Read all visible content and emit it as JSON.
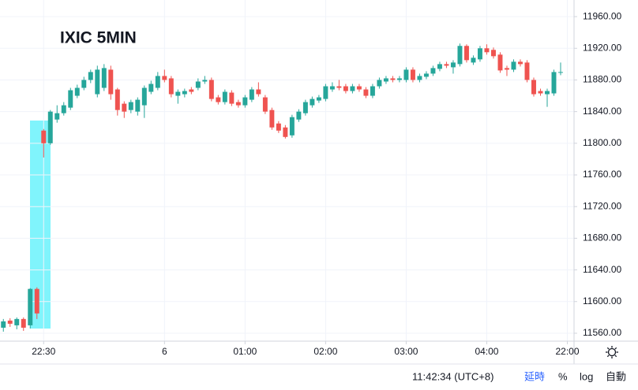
{
  "chart_data": {
    "type": "candlestick",
    "title": "IXIC 5MIN",
    "xlim": [
      -0.5,
      85
    ],
    "xticks": [
      {
        "value": 6,
        "label": "22:30"
      },
      {
        "value": 24,
        "label": "6"
      },
      {
        "value": 36,
        "label": "01:00"
      },
      {
        "value": 48,
        "label": "02:00"
      },
      {
        "value": 60,
        "label": "03:00"
      },
      {
        "value": 72,
        "label": "04:00"
      },
      {
        "value": 84,
        "label": "22:00"
      }
    ],
    "ylim": [
      11550,
      11981
    ],
    "yticks": [
      {
        "value": 11560,
        "label": "11560.00"
      },
      {
        "value": 11600,
        "label": "11600.00"
      },
      {
        "value": 11640,
        "label": "11640.00"
      },
      {
        "value": 11680,
        "label": "11680.00"
      },
      {
        "value": 11720,
        "label": "11720.00"
      },
      {
        "value": 11760,
        "label": "11760.00"
      },
      {
        "value": 11800,
        "label": "11800.00"
      },
      {
        "value": 11840,
        "label": "11840.00"
      },
      {
        "value": 11880,
        "label": "11880.00"
      },
      {
        "value": 11920,
        "label": "11920.00"
      },
      {
        "value": 11960,
        "label": "11960.00"
      }
    ],
    "grid": true,
    "up_color": "#26a69a",
    "down_color": "#ef5350",
    "open": [
      11567,
      11576,
      11570,
      11578,
      11570,
      11616,
      11816,
      11800,
      11830,
      11838,
      11845,
      11860,
      11870,
      11880,
      11862,
      11870,
      11893,
      11868,
      11850,
      11842,
      11840,
      11848,
      11865,
      11870,
      11885,
      11882,
      11860,
      11862,
      11868,
      11870,
      11878,
      11880,
      11858,
      11852,
      11864,
      11852,
      11848,
      11855,
      11868,
      11858,
      11842,
      11825,
      11820,
      11810,
      11830,
      11838,
      11848,
      11854,
      11856,
      11868,
      11872,
      11872,
      11866,
      11872,
      11868,
      11860,
      11872,
      11878,
      11882,
      11880,
      11880,
      11893,
      11880,
      11884,
      11888,
      11894,
      11900,
      11896,
      11900,
      11923,
      11902,
      11906,
      11920,
      11918,
      11912,
      11895,
      11893,
      11903,
      11902,
      11880,
      11866,
      11862,
      11863,
      11889
    ],
    "high": [
      11578,
      11579,
      11580,
      11580,
      11617,
      11618,
      11818,
      11842,
      11848,
      11852,
      11870,
      11874,
      11884,
      11893,
      11898,
      11900,
      11898,
      11870,
      11853,
      11855,
      11858,
      11873,
      11879,
      11890,
      11893,
      11885,
      11868,
      11869,
      11871,
      11882,
      11885,
      11883,
      11861,
      11868,
      11867,
      11855,
      11861,
      11871,
      11877,
      11861,
      11845,
      11828,
      11823,
      11836,
      11843,
      11855,
      11859,
      11861,
      11875,
      11877,
      11880,
      11875,
      11875,
      11875,
      11871,
      11875,
      11883,
      11885,
      11885,
      11885,
      11896,
      11896,
      11888,
      11891,
      11898,
      11903,
      11903,
      11905,
      11926,
      11925,
      11911,
      11923,
      11925,
      11921,
      11915,
      11898,
      11906,
      11906,
      11905,
      11883,
      11869,
      11869,
      11893,
      11902
    ],
    "low": [
      11562,
      11568,
      11565,
      11563,
      11566,
      11578,
      11782,
      11798,
      11826,
      11835,
      11842,
      11857,
      11867,
      11876,
      11858,
      11866,
      11855,
      11835,
      11832,
      11838,
      11835,
      11832,
      11862,
      11867,
      11877,
      11858,
      11850,
      11858,
      11862,
      11867,
      11875,
      11853,
      11849,
      11849,
      11847,
      11845,
      11845,
      11852,
      11859,
      11837,
      11817,
      11813,
      11806,
      11807,
      11827,
      11835,
      11845,
      11851,
      11853,
      11865,
      11867,
      11863,
      11863,
      11865,
      11857,
      11857,
      11869,
      11875,
      11877,
      11877,
      11877,
      11877,
      11877,
      11881,
      11885,
      11891,
      11895,
      11888,
      11897,
      11902,
      11899,
      11903,
      11912,
      11907,
      11889,
      11885,
      11890,
      11897,
      11877,
      11859,
      11860,
      11846,
      11860,
      11886
    ],
    "close": [
      11575,
      11572,
      11578,
      11567,
      11616,
      11585,
      11800,
      11840,
      11838,
      11848,
      11867,
      11870,
      11880,
      11890,
      11893,
      11895,
      11862,
      11842,
      11840,
      11852,
      11855,
      11870,
      11875,
      11885,
      11880,
      11862,
      11865,
      11866,
      11865,
      11878,
      11880,
      11856,
      11852,
      11865,
      11850,
      11848,
      11858,
      11868,
      11862,
      11840,
      11820,
      11816,
      11808,
      11833,
      11840,
      11852,
      11856,
      11858,
      11872,
      11872,
      11870,
      11866,
      11872,
      11868,
      11860,
      11872,
      11880,
      11882,
      11880,
      11882,
      11893,
      11880,
      11885,
      11888,
      11895,
      11900,
      11898,
      11902,
      11923,
      11905,
      11908,
      11920,
      11915,
      11910,
      11892,
      11893,
      11903,
      11900,
      11880,
      11862,
      11863,
      11866,
      11890,
      11890
    ]
  },
  "toolbar": {
    "time": "11:42:34 (UTC+8)",
    "delay": "延時",
    "percent": "%",
    "log": "log",
    "auto": "自動"
  }
}
